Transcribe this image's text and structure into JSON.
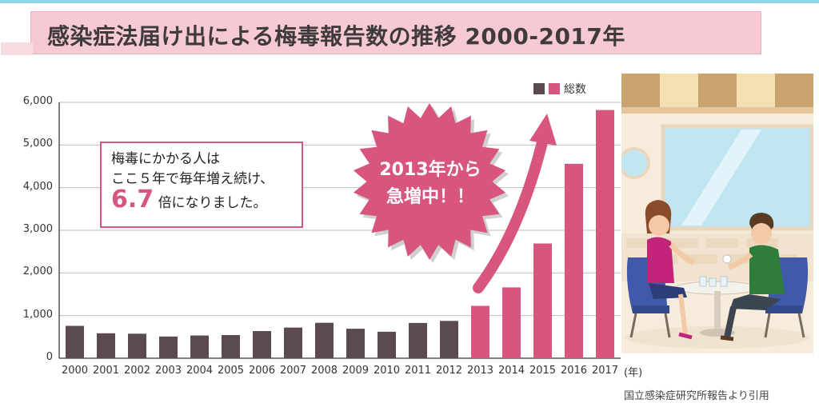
{
  "title": "感染症法届け出による梅毒報告数の推移 2000-2017年",
  "legend": {
    "label": "総数"
  },
  "callout": {
    "line1": "梅毒にかかる人は",
    "line2": "ここ５年で毎年増え続け、",
    "number": "6.7",
    "suffix": "倍になりました。"
  },
  "burst": {
    "line1": "2013年から",
    "line2": "急増中！！"
  },
  "x_unit": "(年)",
  "source": "国立感染症研究所報告より引用",
  "colors": {
    "early": "#5b4a4e",
    "recent": "#d8567e",
    "banner": "#f6c9d3",
    "accent": "#d8567e"
  },
  "chart_data": {
    "type": "bar",
    "title": "感染症法届け出による梅毒報告数の推移 2000-2017年",
    "xlabel": "(年)",
    "ylabel": "",
    "ylim": [
      0,
      6000
    ],
    "yticks": [
      "0",
      "1,000",
      "2,000",
      "3,000",
      "4,000",
      "5,000",
      "6,000"
    ],
    "categories": [
      "2000",
      "2001",
      "2002",
      "2003",
      "2004",
      "2005",
      "2006",
      "2007",
      "2008",
      "2009",
      "2010",
      "2011",
      "2012",
      "2013",
      "2014",
      "2015",
      "2016",
      "2017"
    ],
    "values": [
      759,
      585,
      575,
      509,
      533,
      543,
      637,
      719,
      831,
      691,
      621,
      827,
      875,
      1228,
      1661,
      2690,
      4559,
      5820
    ],
    "highlight_from_index": 13,
    "legend": [
      "総数"
    ]
  }
}
